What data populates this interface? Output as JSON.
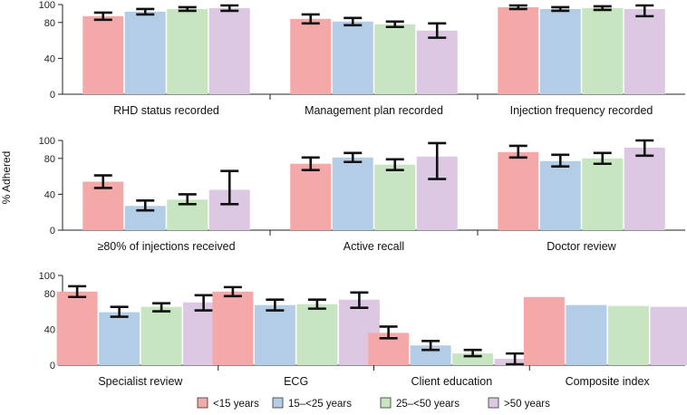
{
  "chart_data": {
    "type": "bar",
    "ylabel": "% Adhered",
    "ylim": [
      0,
      100
    ],
    "yticks": [
      0,
      40,
      80,
      100
    ],
    "grid": false,
    "legend_position": "bottom",
    "series": [
      {
        "name": "<15 years",
        "color": "#f4a8a8"
      },
      {
        "name": "15–<25 years",
        "color": "#b4cde6"
      },
      {
        "name": "25–<50 years",
        "color": "#c6e5c0"
      },
      {
        "name": ">50 years",
        "color": "#dcc8e2"
      }
    ],
    "rows": [
      {
        "panels": [
          {
            "category": "RHD status recorded",
            "values": [
              87,
              92,
              95,
              96
            ],
            "error_low": [
              83,
              89,
              93,
              93
            ],
            "error_high": [
              91,
              95,
              97,
              99
            ]
          },
          {
            "category": "Management plan recorded",
            "values": [
              84,
              81,
              78,
              71
            ],
            "error_low": [
              79,
              77,
              75,
              63
            ],
            "error_high": [
              89,
              85,
              81,
              79
            ]
          },
          {
            "category": "Injection frequency recorded",
            "values": [
              97,
              95,
              96,
              95
            ],
            "error_low": [
              95,
              93,
              94,
              87
            ],
            "error_high": [
              99,
              97,
              98,
              99
            ]
          }
        ]
      },
      {
        "panels": [
          {
            "category": "≥80% of injections received",
            "values": [
              54,
              27,
              34,
              45
            ],
            "error_low": [
              47,
              22,
              29,
              29
            ],
            "error_high": [
              61,
              33,
              40,
              66
            ]
          },
          {
            "category": "Active recall",
            "values": [
              74,
              81,
              73,
              82
            ],
            "error_low": [
              67,
              76,
              67,
              57
            ],
            "error_high": [
              81,
              86,
              79,
              97
            ]
          },
          {
            "category": "Doctor review",
            "values": [
              87,
              77,
              80,
              92
            ],
            "error_low": [
              81,
              71,
              74,
              83
            ],
            "error_high": [
              94,
              84,
              86,
              100
            ]
          }
        ]
      },
      {
        "panels": [
          {
            "category": "Specialist review",
            "values": [
              82,
              59,
              65,
              70
            ],
            "error_low": [
              76,
              54,
              60,
              61
            ],
            "error_high": [
              88,
              65,
              69,
              78
            ]
          },
          {
            "category": "ECG",
            "values": [
              82,
              67,
              68,
              73
            ],
            "error_low": [
              77,
              61,
              63,
              64
            ],
            "error_high": [
              87,
              73,
              73,
              81
            ]
          },
          {
            "category": "Client education",
            "values": [
              36,
              22,
              13,
              7
            ],
            "error_low": [
              30,
              17,
              10,
              1
            ],
            "error_high": [
              43,
              27,
              17,
              13
            ]
          },
          {
            "category": "Composite index",
            "values": [
              76,
              67,
              66,
              65
            ],
            "error_low": null,
            "error_high": null
          }
        ]
      }
    ]
  }
}
